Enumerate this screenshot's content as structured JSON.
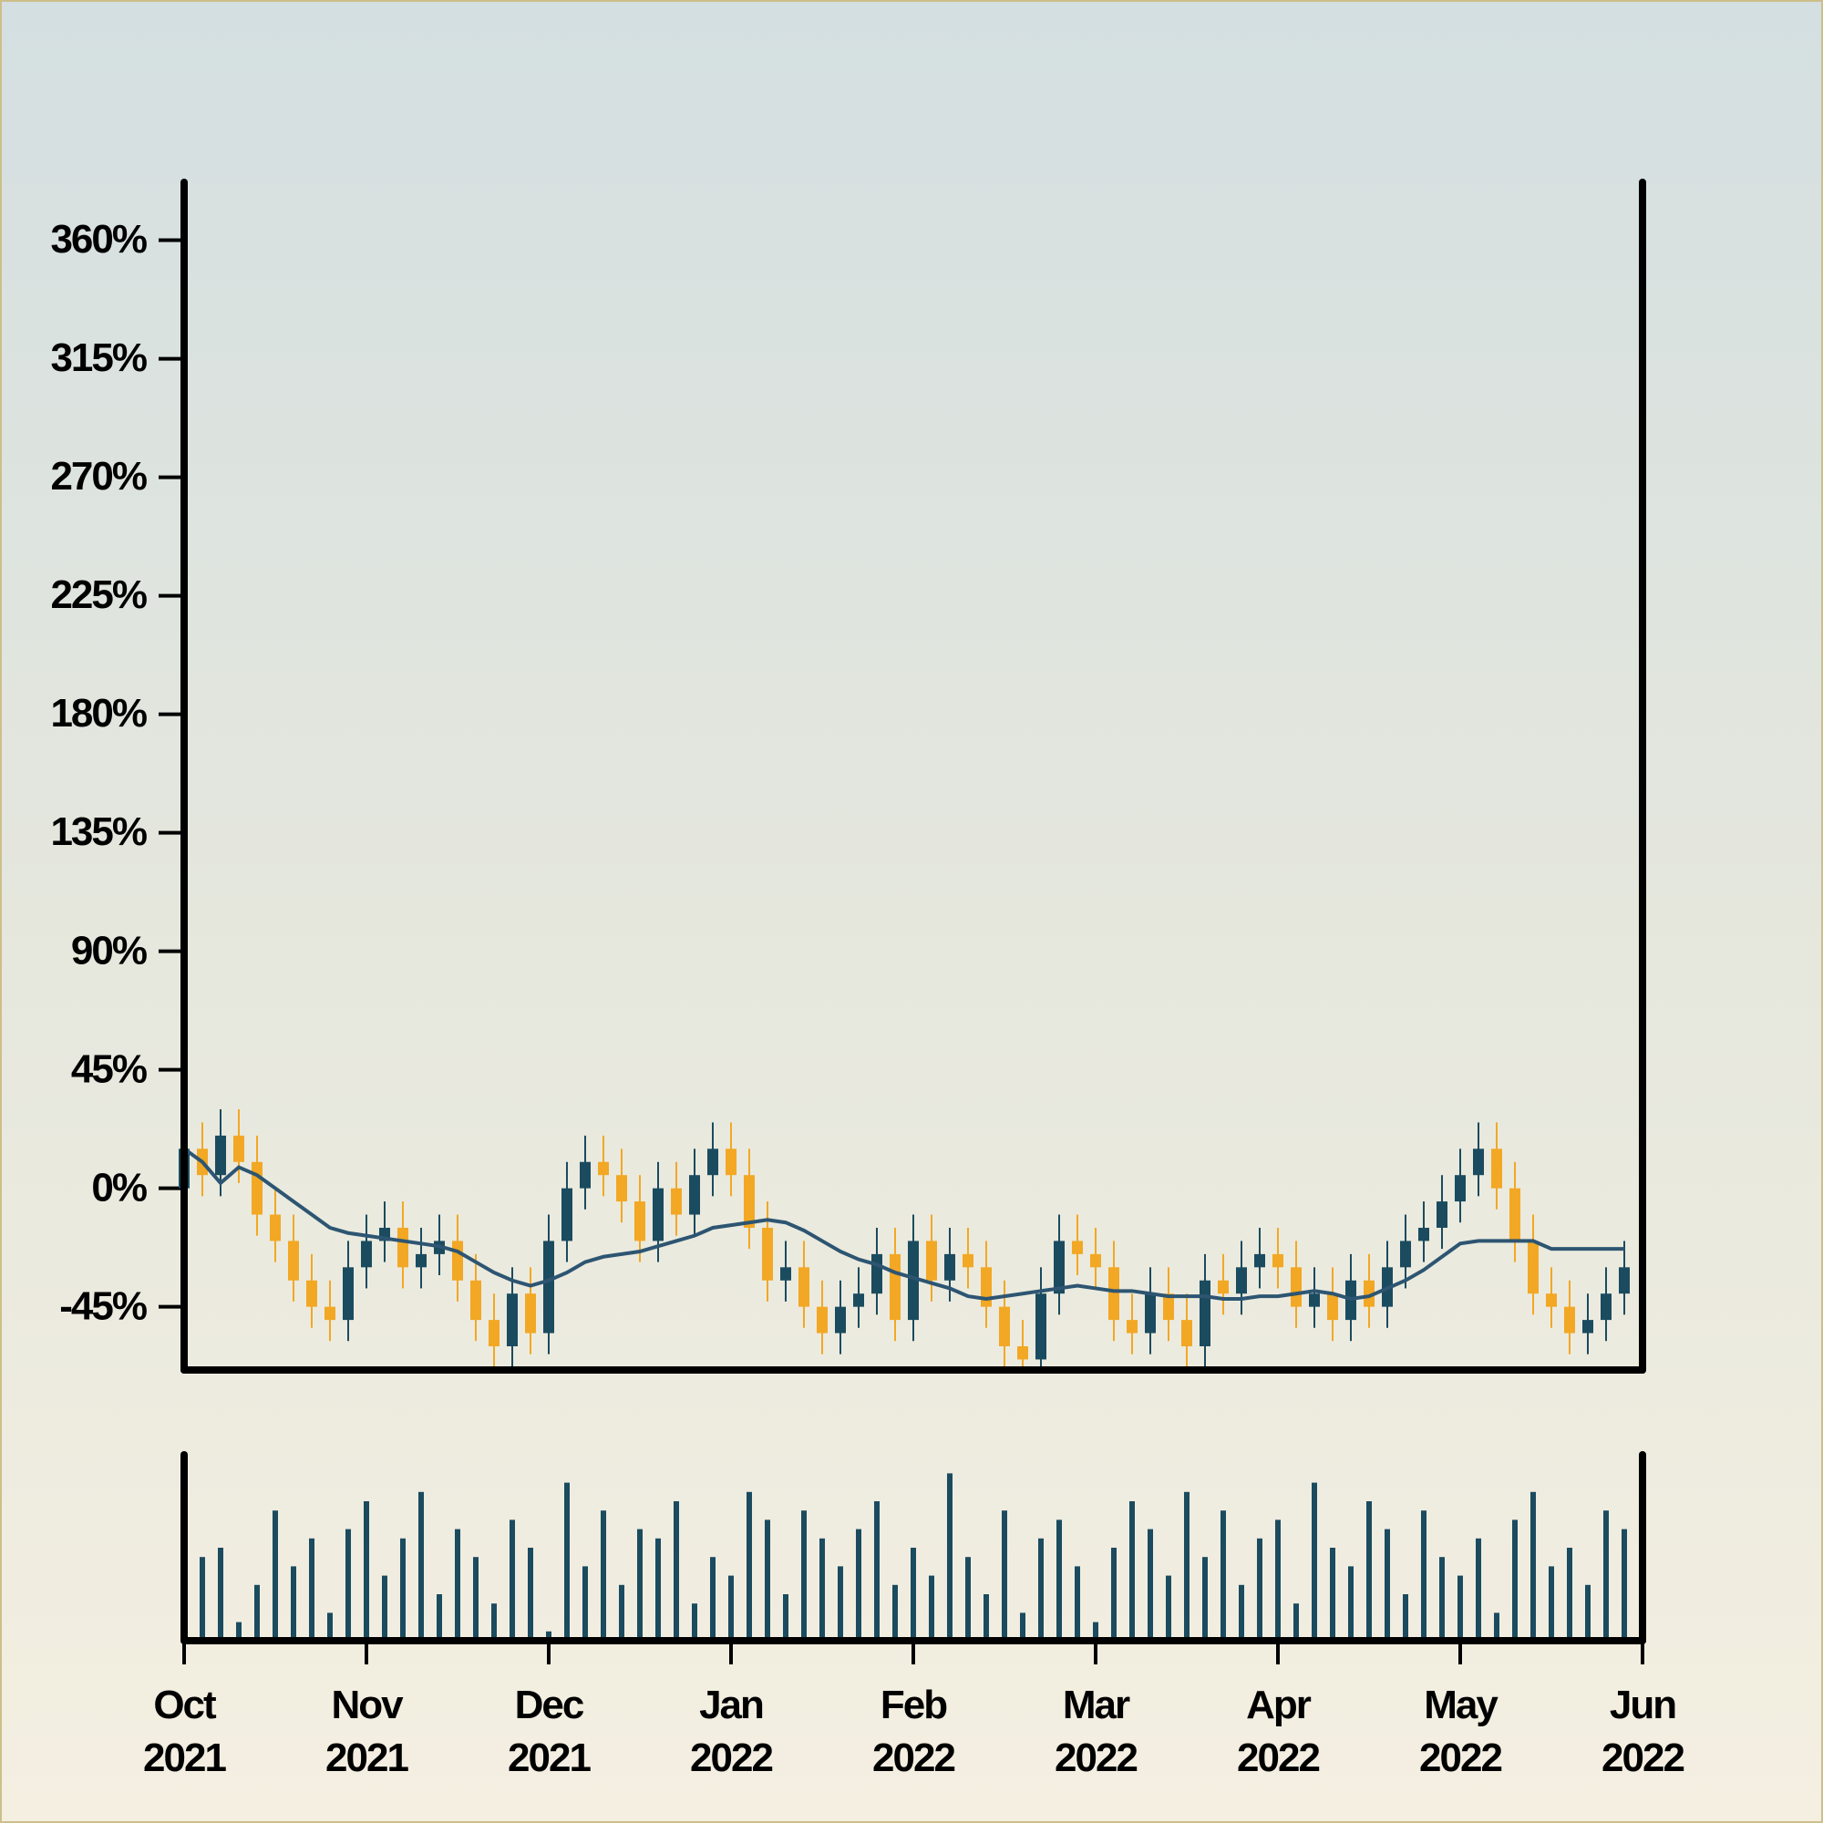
{
  "chart_data": {
    "type": "candlestick",
    "x": [
      0,
      0.1,
      0.2,
      0.3,
      0.4,
      0.5,
      0.6,
      0.7,
      0.8,
      0.9,
      1,
      1.1,
      1.2,
      1.3,
      1.4,
      1.5,
      1.6,
      1.7,
      1.8,
      1.9,
      2,
      2.1,
      2.2,
      2.3,
      2.4,
      2.5,
      2.6,
      2.7,
      2.8,
      2.9,
      3,
      3.1,
      3.2,
      3.3,
      3.4,
      3.5,
      3.6,
      3.7,
      3.8,
      3.9,
      4,
      4.1,
      4.2,
      4.3,
      4.4,
      4.5,
      4.6,
      4.7,
      4.8,
      4.9,
      5,
      5.1,
      5.2,
      5.3,
      5.4,
      5.5,
      5.6,
      5.7,
      5.8,
      5.9,
      6,
      6.1,
      6.2,
      6.3,
      6.4,
      6.5,
      6.6,
      6.7,
      6.8,
      6.9,
      7,
      7.1,
      7.2,
      7.3,
      7.4,
      7.5,
      7.6,
      7.7,
      7.8,
      7.9
    ],
    "open": [
      0,
      15,
      5,
      20,
      10,
      -10,
      -20,
      -35,
      -45,
      -50,
      -30,
      -20,
      -15,
      -30,
      -25,
      -20,
      -35,
      -50,
      -60,
      -40,
      -55,
      -20,
      0,
      10,
      5,
      -5,
      -20,
      0,
      -10,
      5,
      15,
      5,
      -15,
      -35,
      -30,
      -45,
      -55,
      -45,
      -40,
      -25,
      -50,
      -20,
      -35,
      -25,
      -30,
      -45,
      -60,
      -65,
      -40,
      -20,
      -25,
      -30,
      -50,
      -55,
      -40,
      -50,
      -60,
      -35,
      -40,
      -30,
      -25,
      -30,
      -45,
      -40,
      -50,
      -35,
      -45,
      -30,
      -20,
      -15,
      -5,
      5,
      15,
      0,
      -20,
      -40,
      -45,
      -55,
      -50,
      -40
    ],
    "high": [
      25,
      25,
      30,
      30,
      20,
      0,
      -10,
      -25,
      -35,
      -20,
      -10,
      -5,
      -5,
      -15,
      -10,
      -10,
      -25,
      -40,
      -30,
      -30,
      -10,
      10,
      20,
      20,
      15,
      5,
      10,
      10,
      15,
      25,
      25,
      15,
      -5,
      -20,
      -20,
      -35,
      -35,
      -30,
      -15,
      -15,
      -10,
      -10,
      -15,
      -15,
      -20,
      -35,
      -50,
      -30,
      -10,
      -10,
      -15,
      -20,
      -40,
      -30,
      -30,
      -40,
      -25,
      -25,
      -20,
      -15,
      -15,
      -20,
      -30,
      -30,
      -25,
      -25,
      -20,
      -10,
      -5,
      5,
      15,
      25,
      25,
      10,
      -10,
      -30,
      -35,
      -40,
      -30,
      -20
    ],
    "low": [
      -8,
      -3,
      -3,
      2,
      -18,
      -28,
      -43,
      -53,
      -58,
      -58,
      -38,
      -28,
      -38,
      -38,
      -33,
      -43,
      -58,
      -68,
      -68,
      -63,
      -63,
      -28,
      -8,
      -3,
      -13,
      -28,
      -28,
      -18,
      -18,
      -3,
      -3,
      -23,
      -43,
      -43,
      -53,
      -63,
      -63,
      -53,
      -48,
      -58,
      -58,
      -43,
      -43,
      -38,
      -53,
      -68,
      -68,
      -68,
      -48,
      -33,
      -38,
      -58,
      -63,
      -63,
      -58,
      -68,
      -68,
      -48,
      -48,
      -38,
      -38,
      -53,
      -53,
      -58,
      -58,
      -53,
      -53,
      -38,
      -28,
      -23,
      -13,
      -3,
      -8,
      -28,
      -48,
      -53,
      -63,
      -63,
      -58,
      -48
    ],
    "close": [
      15,
      5,
      20,
      10,
      -10,
      -20,
      -35,
      -45,
      -50,
      -30,
      -20,
      -15,
      -30,
      -25,
      -20,
      -35,
      -50,
      -60,
      -40,
      -55,
      -20,
      0,
      10,
      5,
      -5,
      -20,
      0,
      -10,
      5,
      15,
      5,
      -15,
      -35,
      -30,
      -45,
      -55,
      -45,
      -40,
      -25,
      -50,
      -20,
      -35,
      -25,
      -30,
      -45,
      -60,
      -65,
      -40,
      -20,
      -25,
      -30,
      -50,
      -55,
      -40,
      -50,
      -60,
      -35,
      -40,
      -30,
      -25,
      -30,
      -45,
      -40,
      -50,
      -35,
      -45,
      -30,
      -20,
      -15,
      -5,
      5,
      15,
      0,
      -20,
      -40,
      -45,
      -55,
      -50,
      -40,
      -30
    ],
    "up_color": "#1b4b5f",
    "down_color": "#f2a824",
    "ma": {
      "color": "#2d5572",
      "values": [
        15,
        10,
        2,
        8,
        5,
        0,
        -5,
        -10,
        -15,
        -17,
        -18,
        -19,
        -20,
        -21,
        -22,
        -24,
        -28,
        -32,
        -35,
        -37,
        -35,
        -32,
        -28,
        -26,
        -25,
        -24,
        -22,
        -20,
        -18,
        -15,
        -14,
        -13,
        -12,
        -13,
        -16,
        -20,
        -24,
        -27,
        -29,
        -32,
        -34,
        -36,
        -38,
        -41,
        -42,
        -41,
        -40,
        -39,
        -38,
        -37,
        -38,
        -39,
        -39,
        -40,
        -41,
        -41,
        -41,
        -42,
        -42,
        -41,
        -41,
        -40,
        -39,
        -40,
        -42,
        -41,
        -38,
        -35,
        -31,
        -26,
        -21,
        -20,
        -20,
        -20,
        -20,
        -23,
        -23,
        -23,
        -23,
        -23
      ]
    },
    "volume": {
      "color": "#1b4b5f",
      "ylim": [
        0,
        100
      ],
      "values": [
        20,
        45,
        50,
        10,
        30,
        70,
        40,
        55,
        15,
        60,
        75,
        35,
        55,
        80,
        25,
        60,
        45,
        20,
        65,
        50,
        5,
        85,
        40,
        70,
        30,
        60,
        55,
        75,
        20,
        45,
        35,
        80,
        65,
        25,
        70,
        55,
        40,
        60,
        75,
        30,
        50,
        35,
        90,
        45,
        25,
        70,
        15,
        55,
        65,
        40,
        10,
        50,
        75,
        60,
        35,
        80,
        45,
        70,
        30,
        55,
        65,
        20,
        85,
        50,
        40,
        75,
        60,
        25,
        70,
        45,
        35,
        55,
        15,
        65,
        80,
        40,
        50,
        30,
        70,
        60
      ]
    },
    "xlim": [
      0,
      8
    ],
    "xticks": [
      {
        "value": 0,
        "label": "Oct 2021"
      },
      {
        "value": 1,
        "label": "Nov 2021"
      },
      {
        "value": 2,
        "label": "Dec 2021"
      },
      {
        "value": 3,
        "label": "Jan 2022"
      },
      {
        "value": 4,
        "label": "Feb 2022"
      },
      {
        "value": 5,
        "label": "Mar 2022"
      },
      {
        "value": 6,
        "label": "Apr 2022"
      },
      {
        "value": 7,
        "label": "May 2022"
      },
      {
        "value": 8,
        "label": "Jun 2022"
      }
    ],
    "ylim": [
      -69,
      382
    ],
    "yticks": [
      {
        "value": -45,
        "label": "-45%"
      },
      {
        "value": 0,
        "label": "0%"
      },
      {
        "value": 45,
        "label": "45%"
      },
      {
        "value": 90,
        "label": "90%"
      },
      {
        "value": 135,
        "label": "135%"
      },
      {
        "value": 180,
        "label": "180%"
      },
      {
        "value": 225,
        "label": "225%"
      },
      {
        "value": 270,
        "label": "270%"
      },
      {
        "value": 315,
        "label": "315%"
      },
      {
        "value": 360,
        "label": "360%"
      }
    ]
  }
}
